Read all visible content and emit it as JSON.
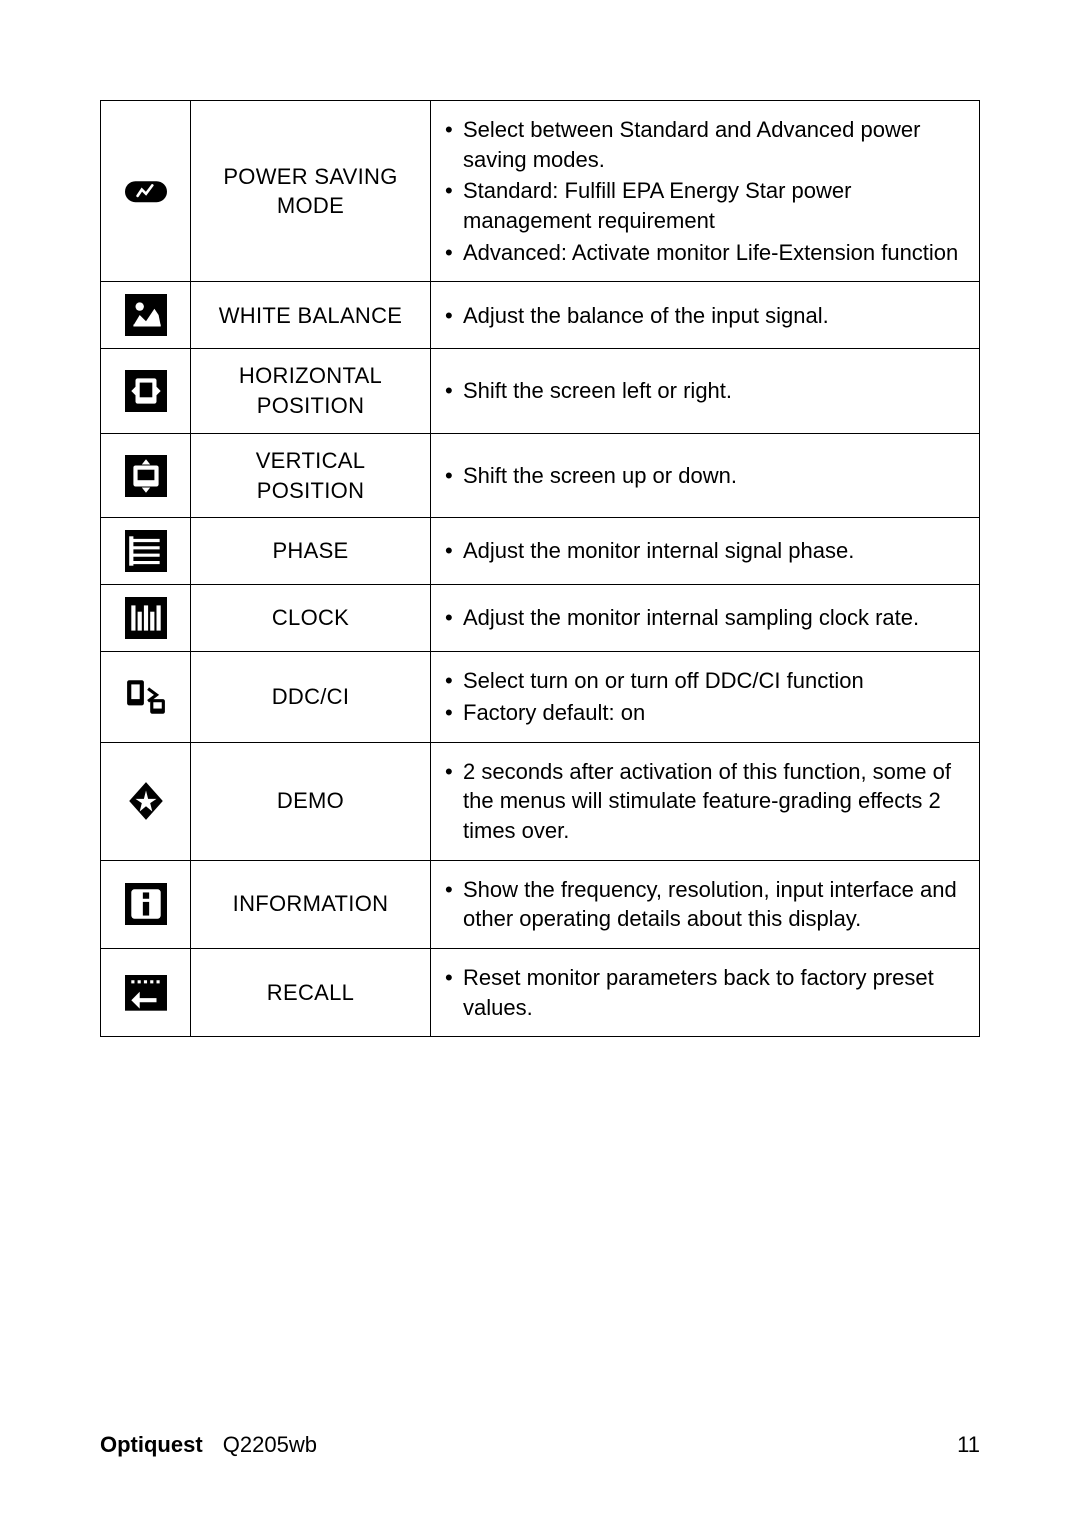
{
  "table": {
    "border_color": "#000000",
    "background_color": "#ffffff",
    "font_size_pt": 17,
    "rows": [
      {
        "icon": "power-saving-icon",
        "label": "POWER SAVING MODE",
        "bullets": [
          "Select between Standard and Advanced power saving modes.",
          "Standard: Fulfill EPA Energy Star power management requirement",
          "Advanced: Activate monitor Life-Extension function"
        ]
      },
      {
        "icon": "white-balance-icon",
        "label": "WHITE BALANCE",
        "bullets": [
          "Adjust the balance of the input signal."
        ]
      },
      {
        "icon": "horizontal-position-icon",
        "label": "HORIZONTAL POSITION",
        "bullets": [
          "Shift the screen left or right."
        ]
      },
      {
        "icon": "vertical-position-icon",
        "label": "VERTICAL POSITION",
        "bullets": [
          "Shift the screen up or down."
        ]
      },
      {
        "icon": "phase-icon",
        "label": "PHASE",
        "bullets": [
          "Adjust the monitor internal signal phase."
        ]
      },
      {
        "icon": "clock-icon",
        "label": "CLOCK",
        "bullets": [
          "Adjust the monitor internal sampling clock rate."
        ]
      },
      {
        "icon": "ddcci-icon",
        "label": "DDC/CI",
        "bullets": [
          "Select turn on or turn off DDC/CI function",
          "Factory default: on"
        ]
      },
      {
        "icon": "demo-icon",
        "label": "DEMO",
        "bullets": [
          "2 seconds after activation of this function, some of the menus will stimulate feature-grading effects 2 times over."
        ]
      },
      {
        "icon": "information-icon",
        "label": "INFORMATION",
        "bullets": [
          "Show the frequency, resolution, input interface and other operating details about this display."
        ]
      },
      {
        "icon": "recall-icon",
        "label": "RECALL",
        "bullets": [
          "Reset monitor parameters back to factory preset values."
        ]
      }
    ]
  },
  "footer": {
    "brand": "Optiquest",
    "model": "Q2205wb",
    "page": "11"
  },
  "icon_colors": {
    "fg": "#000000",
    "bg": "#ffffff"
  }
}
